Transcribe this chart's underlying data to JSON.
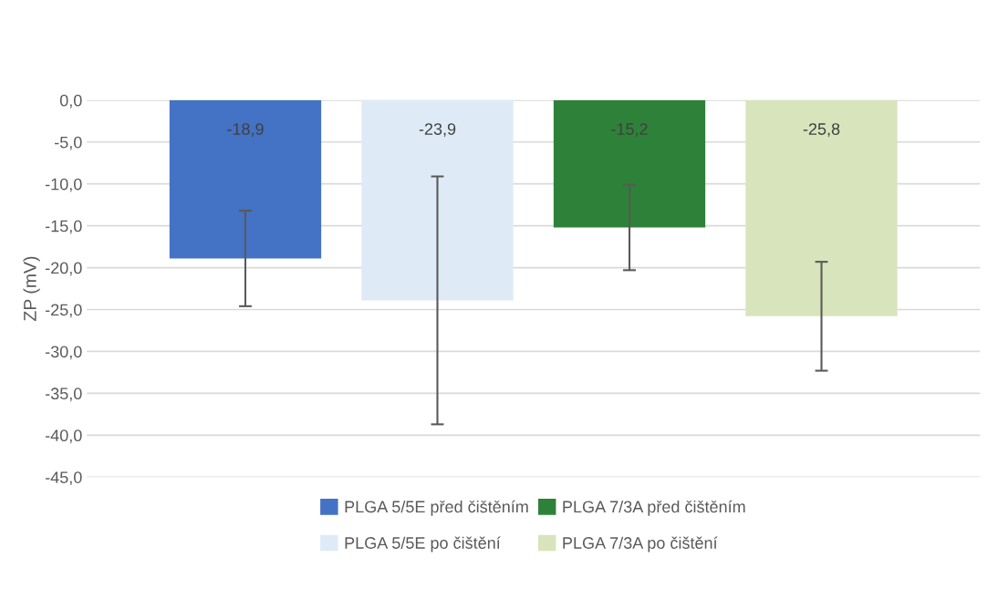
{
  "chart_data": {
    "type": "bar",
    "ylabel": "ZP (mV)",
    "categories": [
      null
    ],
    "series": [
      {
        "name": "PLGA 5/5E před čištěním",
        "color": "#4472c4",
        "values": [
          -18.9
        ],
        "errors": [
          5.7
        ],
        "value_labels": [
          "-18,9"
        ]
      },
      {
        "name": "PLGA 5/5E po čištění",
        "color": "#deebf7",
        "values": [
          -23.9
        ],
        "errors": [
          14.8
        ],
        "value_labels": [
          "-23,9"
        ]
      },
      {
        "name": "PLGA 7/3A před čištěním",
        "color": "#2e8139",
        "values": [
          -15.2
        ],
        "errors": [
          5.1
        ],
        "value_labels": [
          "-15,2"
        ]
      },
      {
        "name": "PLGA 7/3A po čištění",
        "color": "#d8e4bc",
        "values": [
          -25.8
        ],
        "errors": [
          6.5
        ],
        "value_labels": [
          "-25,8"
        ]
      }
    ],
    "ylim": [
      -45,
      0
    ],
    "yticks": [
      {
        "value": 0,
        "label": "0,0"
      },
      {
        "value": -5,
        "label": "-5,0"
      },
      {
        "value": -10,
        "label": "-10,0"
      },
      {
        "value": -15,
        "label": "-15,0"
      },
      {
        "value": -20,
        "label": "-20,0"
      },
      {
        "value": -25,
        "label": "-25,0"
      },
      {
        "value": -30,
        "label": "-30,0"
      },
      {
        "value": -35,
        "label": "-35,0"
      },
      {
        "value": -40,
        "label": "-40,0"
      },
      {
        "value": -45,
        "label": "-45,0"
      }
    ],
    "grid": "y",
    "legend": "bottom",
    "tick_labels": "y"
  }
}
